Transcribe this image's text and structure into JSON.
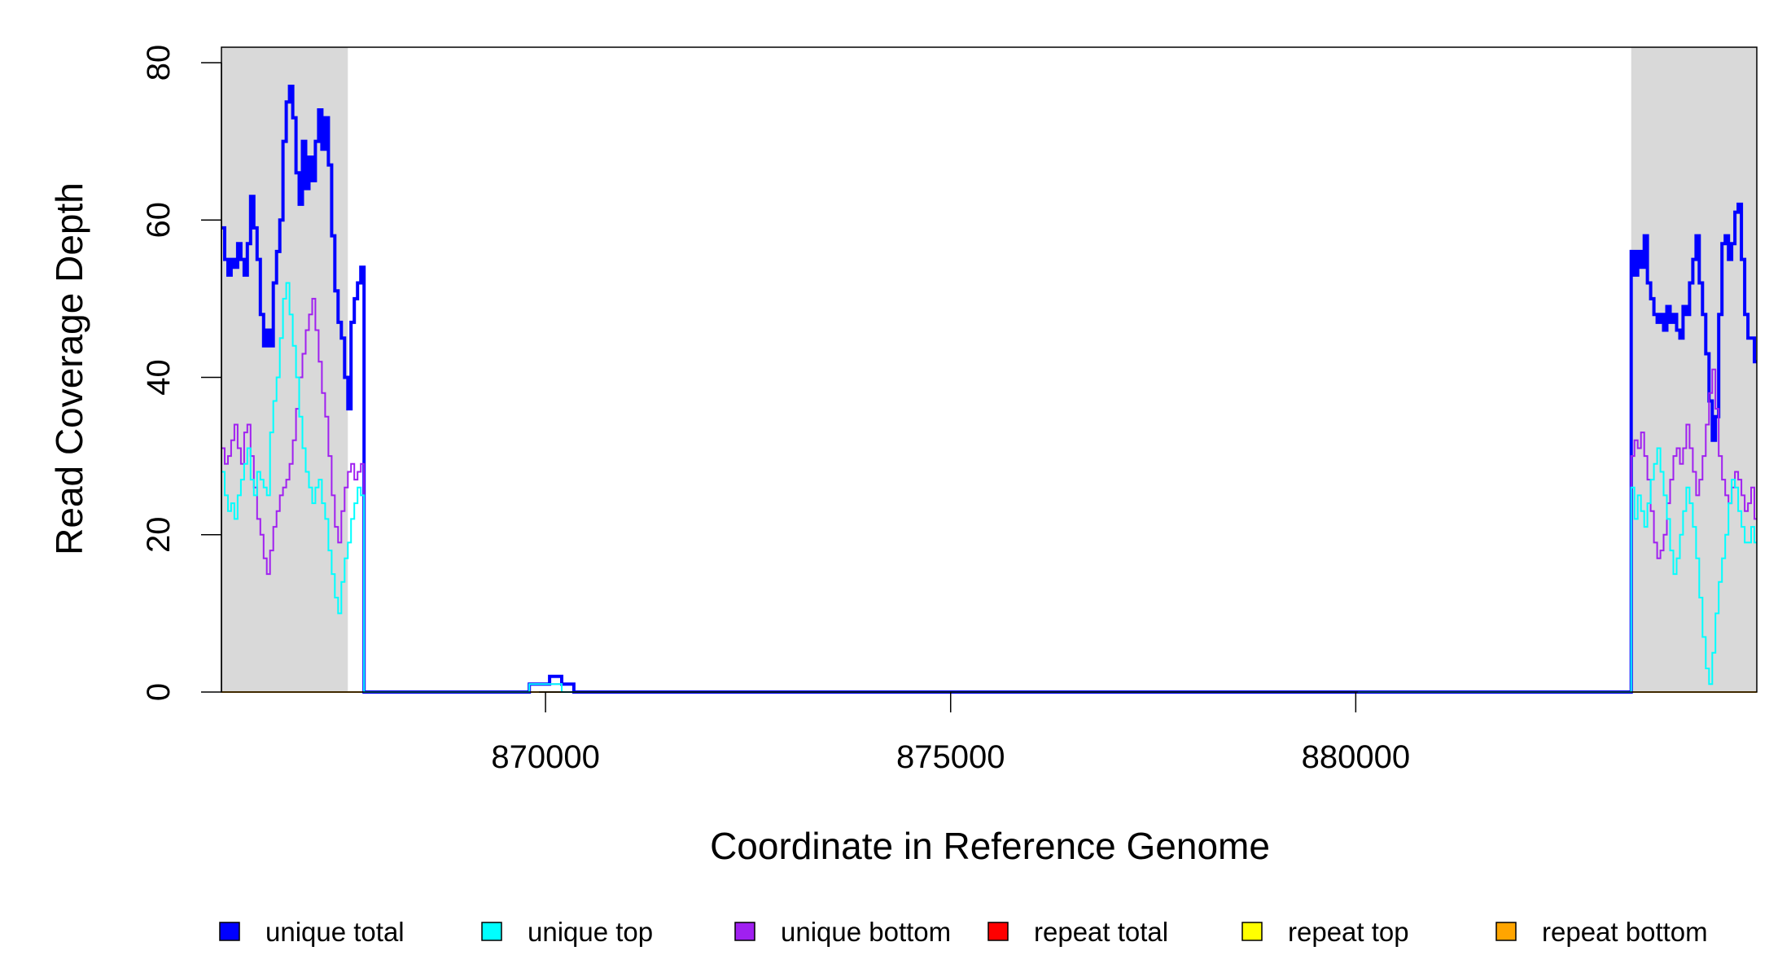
{
  "chart_data": {
    "type": "line",
    "step": true,
    "xlabel": "Coordinate in Reference Genome",
    "ylabel": "Read Coverage Depth",
    "xlim": [
      866000,
      884950
    ],
    "ylim": [
      0,
      80
    ],
    "x_ticks": [
      {
        "value": 870000,
        "label": "870000"
      },
      {
        "value": 875000,
        "label": "875000"
      },
      {
        "value": 880000,
        "label": "880000"
      }
    ],
    "y_ticks": [
      {
        "value": 0,
        "label": "0"
      },
      {
        "value": 20,
        "label": "20"
      },
      {
        "value": 40,
        "label": "40"
      },
      {
        "value": 60,
        "label": "60"
      },
      {
        "value": 80,
        "label": "80"
      }
    ],
    "shaded_regions": [
      {
        "x0": 866000,
        "x1": 867560,
        "color": "#d9d9d9"
      },
      {
        "x0": 883400,
        "x1": 884950,
        "color": "#d9d9d9"
      }
    ],
    "colors": {
      "unique_total": "#0000ff",
      "unique_top": "#00ffff",
      "unique_bottom": "#a020f0",
      "repeat_total": "#ff0000",
      "repeat_top": "#ffff00",
      "repeat_bottom": "#ffa500",
      "shade": "#d9d9d9"
    },
    "legend": [
      {
        "label": "unique total",
        "color": "#0000ff"
      },
      {
        "label": "unique top",
        "color": "#00ffff"
      },
      {
        "label": "unique bottom",
        "color": "#a020f0"
      },
      {
        "label": "repeat total",
        "color": "#ff0000"
      },
      {
        "label": "repeat top",
        "color": "#ffff00"
      },
      {
        "label": "repeat bottom",
        "color": "#ffa500"
      }
    ],
    "legend_position": "bottom",
    "series": [
      {
        "name": "unique total",
        "color": "#0000ff",
        "width": 4,
        "points": [
          [
            866000,
            59
          ],
          [
            866040,
            55
          ],
          [
            866080,
            53
          ],
          [
            866120,
            55
          ],
          [
            866160,
            54
          ],
          [
            866200,
            57
          ],
          [
            866240,
            55
          ],
          [
            866280,
            53
          ],
          [
            866320,
            57
          ],
          [
            866360,
            63
          ],
          [
            866400,
            59
          ],
          [
            866440,
            55
          ],
          [
            866480,
            48
          ],
          [
            866520,
            44
          ],
          [
            866560,
            46
          ],
          [
            866600,
            44
          ],
          [
            866640,
            52
          ],
          [
            866680,
            56
          ],
          [
            866720,
            60
          ],
          [
            866760,
            70
          ],
          [
            866800,
            75
          ],
          [
            866840,
            77
          ],
          [
            866880,
            73
          ],
          [
            866920,
            66
          ],
          [
            866960,
            62
          ],
          [
            867000,
            70
          ],
          [
            867040,
            64
          ],
          [
            867080,
            68
          ],
          [
            867120,
            65
          ],
          [
            867160,
            70
          ],
          [
            867200,
            74
          ],
          [
            867240,
            69
          ],
          [
            867280,
            73
          ],
          [
            867320,
            67
          ],
          [
            867360,
            58
          ],
          [
            867400,
            51
          ],
          [
            867440,
            47
          ],
          [
            867480,
            45
          ],
          [
            867520,
            40
          ],
          [
            867560,
            36
          ],
          [
            867600,
            47
          ],
          [
            867640,
            50
          ],
          [
            867680,
            52
          ],
          [
            867720,
            54
          ],
          [
            867760,
            0
          ],
          [
            869800,
            1
          ],
          [
            870050,
            2
          ],
          [
            870200,
            1
          ],
          [
            870350,
            0
          ],
          [
            883400,
            56
          ],
          [
            883440,
            53
          ],
          [
            883480,
            56
          ],
          [
            883520,
            54
          ],
          [
            883560,
            58
          ],
          [
            883600,
            52
          ],
          [
            883640,
            50
          ],
          [
            883680,
            48
          ],
          [
            883720,
            47
          ],
          [
            883760,
            48
          ],
          [
            883800,
            46
          ],
          [
            883840,
            49
          ],
          [
            883880,
            47
          ],
          [
            883920,
            48
          ],
          [
            883960,
            46
          ],
          [
            884000,
            45
          ],
          [
            884040,
            49
          ],
          [
            884080,
            48
          ],
          [
            884120,
            52
          ],
          [
            884160,
            55
          ],
          [
            884200,
            58
          ],
          [
            884240,
            52
          ],
          [
            884280,
            48
          ],
          [
            884320,
            43
          ],
          [
            884360,
            37
          ],
          [
            884400,
            32
          ],
          [
            884440,
            35
          ],
          [
            884480,
            48
          ],
          [
            884520,
            57
          ],
          [
            884560,
            58
          ],
          [
            884600,
            55
          ],
          [
            884640,
            57
          ],
          [
            884680,
            61
          ],
          [
            884720,
            62
          ],
          [
            884760,
            55
          ],
          [
            884800,
            48
          ],
          [
            884840,
            45
          ],
          [
            884880,
            45
          ],
          [
            884920,
            42
          ]
        ]
      },
      {
        "name": "unique top",
        "color": "#00ffff",
        "width": 2,
        "points": [
          [
            866000,
            28
          ],
          [
            866040,
            25
          ],
          [
            866080,
            23
          ],
          [
            866120,
            24
          ],
          [
            866160,
            22
          ],
          [
            866200,
            25
          ],
          [
            866240,
            27
          ],
          [
            866280,
            29
          ],
          [
            866320,
            31
          ],
          [
            866360,
            27
          ],
          [
            866400,
            25
          ],
          [
            866440,
            28
          ],
          [
            866480,
            27
          ],
          [
            866520,
            26
          ],
          [
            866560,
            25
          ],
          [
            866600,
            33
          ],
          [
            866640,
            37
          ],
          [
            866680,
            40
          ],
          [
            866720,
            45
          ],
          [
            866760,
            50
          ],
          [
            866800,
            52
          ],
          [
            866840,
            48
          ],
          [
            866880,
            44
          ],
          [
            866920,
            40
          ],
          [
            866960,
            35
          ],
          [
            867000,
            31
          ],
          [
            867040,
            28
          ],
          [
            867080,
            26
          ],
          [
            867120,
            24
          ],
          [
            867160,
            26
          ],
          [
            867200,
            27
          ],
          [
            867240,
            24
          ],
          [
            867280,
            22
          ],
          [
            867320,
            18
          ],
          [
            867360,
            15
          ],
          [
            867400,
            12
          ],
          [
            867440,
            10
          ],
          [
            867480,
            14
          ],
          [
            867520,
            17
          ],
          [
            867560,
            19
          ],
          [
            867600,
            22
          ],
          [
            867640,
            24
          ],
          [
            867680,
            26
          ],
          [
            867720,
            25
          ],
          [
            867760,
            0
          ],
          [
            869800,
            1
          ],
          [
            870050,
            1
          ],
          [
            870200,
            0
          ],
          [
            883400,
            26
          ],
          [
            883440,
            22
          ],
          [
            883480,
            25
          ],
          [
            883520,
            23
          ],
          [
            883560,
            21
          ],
          [
            883600,
            24
          ],
          [
            883640,
            27
          ],
          [
            883680,
            29
          ],
          [
            883720,
            31
          ],
          [
            883760,
            28
          ],
          [
            883800,
            25
          ],
          [
            883840,
            22
          ],
          [
            883880,
            18
          ],
          [
            883920,
            15
          ],
          [
            883960,
            17
          ],
          [
            884000,
            20
          ],
          [
            884040,
            23
          ],
          [
            884080,
            26
          ],
          [
            884120,
            24
          ],
          [
            884160,
            21
          ],
          [
            884200,
            17
          ],
          [
            884240,
            12
          ],
          [
            884280,
            7
          ],
          [
            884320,
            3
          ],
          [
            884360,
            1
          ],
          [
            884400,
            5
          ],
          [
            884440,
            10
          ],
          [
            884480,
            14
          ],
          [
            884520,
            17
          ],
          [
            884560,
            20
          ],
          [
            884600,
            24
          ],
          [
            884640,
            27
          ],
          [
            884680,
            26
          ],
          [
            884720,
            23
          ],
          [
            884760,
            21
          ],
          [
            884800,
            19
          ],
          [
            884840,
            19
          ],
          [
            884880,
            21
          ],
          [
            884920,
            19
          ]
        ]
      },
      {
        "name": "unique bottom",
        "color": "#a020f0",
        "width": 2,
        "points": [
          [
            866000,
            31
          ],
          [
            866040,
            29
          ],
          [
            866080,
            30
          ],
          [
            866120,
            32
          ],
          [
            866160,
            34
          ],
          [
            866200,
            31
          ],
          [
            866240,
            29
          ],
          [
            866280,
            33
          ],
          [
            866320,
            34
          ],
          [
            866360,
            30
          ],
          [
            866400,
            26
          ],
          [
            866440,
            22
          ],
          [
            866480,
            20
          ],
          [
            866520,
            17
          ],
          [
            866560,
            15
          ],
          [
            866600,
            18
          ],
          [
            866640,
            21
          ],
          [
            866680,
            23
          ],
          [
            866720,
            25
          ],
          [
            866760,
            26
          ],
          [
            866800,
            27
          ],
          [
            866840,
            29
          ],
          [
            866880,
            32
          ],
          [
            866920,
            36
          ],
          [
            866960,
            40
          ],
          [
            867000,
            43
          ],
          [
            867040,
            46
          ],
          [
            867080,
            48
          ],
          [
            867120,
            50
          ],
          [
            867160,
            46
          ],
          [
            867200,
            42
          ],
          [
            867240,
            38
          ],
          [
            867280,
            35
          ],
          [
            867320,
            30
          ],
          [
            867360,
            25
          ],
          [
            867400,
            21
          ],
          [
            867440,
            19
          ],
          [
            867480,
            23
          ],
          [
            867520,
            26
          ],
          [
            867560,
            28
          ],
          [
            867600,
            29
          ],
          [
            867640,
            27
          ],
          [
            867680,
            28
          ],
          [
            867720,
            29
          ],
          [
            867760,
            0
          ],
          [
            869800,
            1
          ],
          [
            870050,
            1
          ],
          [
            870200,
            0
          ],
          [
            883400,
            30
          ],
          [
            883440,
            32
          ],
          [
            883480,
            31
          ],
          [
            883520,
            33
          ],
          [
            883560,
            30
          ],
          [
            883600,
            27
          ],
          [
            883640,
            23
          ],
          [
            883680,
            19
          ],
          [
            883720,
            17
          ],
          [
            883760,
            18
          ],
          [
            883800,
            20
          ],
          [
            883840,
            24
          ],
          [
            883880,
            27
          ],
          [
            883920,
            30
          ],
          [
            883960,
            31
          ],
          [
            884000,
            29
          ],
          [
            884040,
            31
          ],
          [
            884080,
            34
          ],
          [
            884120,
            31
          ],
          [
            884160,
            28
          ],
          [
            884200,
            25
          ],
          [
            884240,
            27
          ],
          [
            884280,
            30
          ],
          [
            884320,
            34
          ],
          [
            884360,
            38
          ],
          [
            884400,
            41
          ],
          [
            884440,
            36
          ],
          [
            884480,
            30
          ],
          [
            884520,
            27
          ],
          [
            884560,
            25
          ],
          [
            884600,
            24
          ],
          [
            884640,
            26
          ],
          [
            884680,
            28
          ],
          [
            884720,
            27
          ],
          [
            884760,
            25
          ],
          [
            884800,
            23
          ],
          [
            884840,
            24
          ],
          [
            884880,
            26
          ],
          [
            884920,
            22
          ]
        ]
      },
      {
        "name": "repeat total",
        "color": "#ff0000",
        "width": 2,
        "points": [
          [
            866000,
            0
          ],
          [
            884950,
            0
          ]
        ]
      },
      {
        "name": "repeat top",
        "color": "#ffff00",
        "width": 2,
        "points": [
          [
            866000,
            0
          ],
          [
            884950,
            0
          ]
        ]
      },
      {
        "name": "repeat bottom",
        "color": "#ffa500",
        "width": 2,
        "points": [
          [
            866000,
            0
          ],
          [
            884950,
            0
          ]
        ]
      }
    ]
  }
}
